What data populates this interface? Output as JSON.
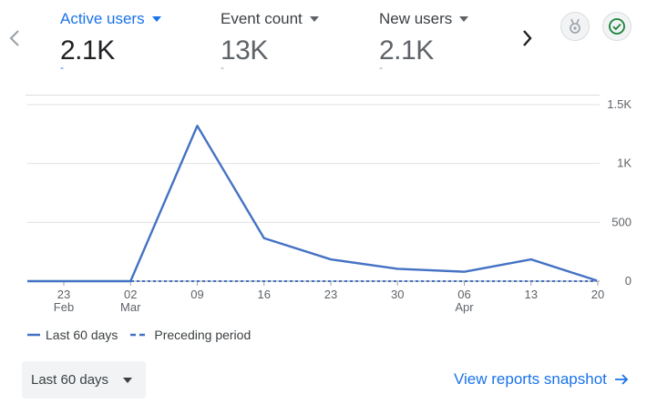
{
  "metrics": [
    {
      "label": "Active users",
      "value": "2.1K",
      "delta": "-"
    },
    {
      "label": "Event count",
      "value": "13K",
      "delta": "-"
    },
    {
      "label": "New users",
      "value": "2.1K",
      "delta": "-"
    }
  ],
  "icons": {
    "prev": "chevron-left-icon",
    "next": "chevron-right-icon",
    "insights": "insights-badge-icon",
    "status": "check-circle-icon"
  },
  "colors": {
    "accent": "#1a73e8",
    "series": "#4472c4",
    "grid": "#e0e0e0",
    "text_muted": "#5f6368"
  },
  "chart_data": {
    "type": "line",
    "x_labels": [
      {
        "day": "23",
        "month": "Feb"
      },
      {
        "day": "02",
        "month": "Mar"
      },
      {
        "day": "09",
        "month": ""
      },
      {
        "day": "16",
        "month": ""
      },
      {
        "day": "23",
        "month": ""
      },
      {
        "day": "30",
        "month": ""
      },
      {
        "day": "06",
        "month": "Apr"
      },
      {
        "day": "13",
        "month": ""
      },
      {
        "day": "20",
        "month": ""
      }
    ],
    "y_ticks": [
      "0",
      "500",
      "1K",
      "1.5K"
    ],
    "y_values": [
      0,
      500,
      1000,
      1500
    ],
    "ylim": [
      0,
      1500
    ],
    "series": [
      {
        "name": "Last 60 days",
        "style": "solid",
        "values": [
          0,
          0,
          0,
          1320,
          365,
          185,
          105,
          80,
          185,
          5
        ]
      },
      {
        "name": "Preceding period",
        "style": "dashed",
        "values": [
          0,
          0,
          0,
          0,
          0,
          0,
          0,
          0,
          0,
          0
        ]
      }
    ]
  },
  "legend": {
    "current": "Last 60 days",
    "previous": "Preceding period"
  },
  "footer": {
    "date_range": "Last 60 days",
    "snapshot_link": "View reports snapshot"
  }
}
